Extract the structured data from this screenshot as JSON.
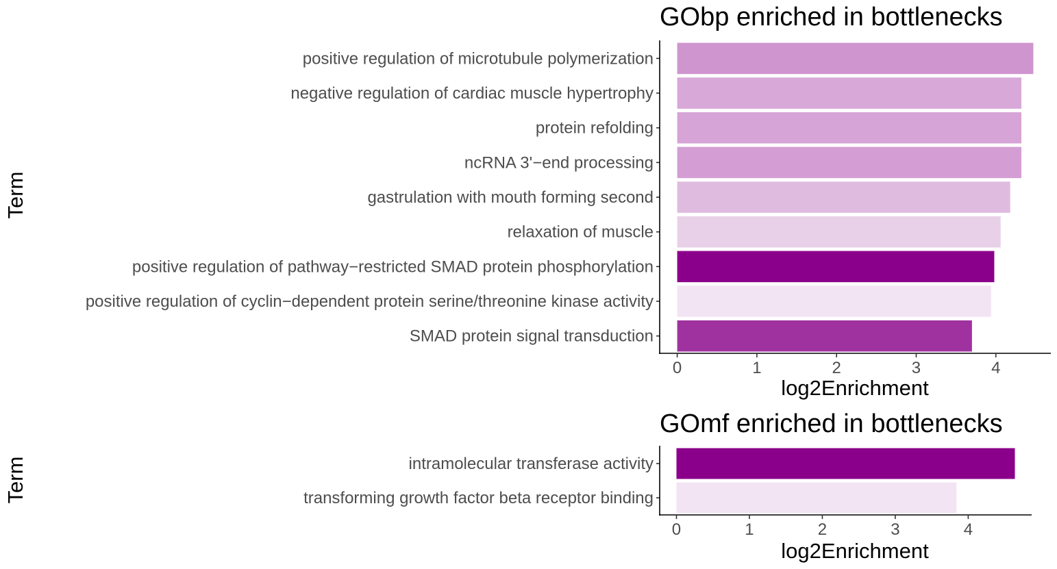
{
  "chart_data": [
    {
      "type": "bar",
      "orientation": "horizontal",
      "title": "GObp enriched in bottlenecks",
      "xlabel": "log2Enrichment",
      "ylabel": "Term",
      "xlim": [
        -0.22,
        4.69
      ],
      "xticks": [
        0,
        1,
        2,
        3,
        4
      ],
      "grid": false,
      "legend": "none",
      "categories": [
        "positive regulation of microtubule polymerization",
        "negative regulation of cardiac muscle hypertrophy",
        "protein refolding",
        "ncRNA 3'−end processing",
        "gastrulation with mouth forming second",
        "relaxation of muscle",
        "positive regulation of pathway−restricted SMAD protein phosphorylation",
        "positive regulation of cyclin−dependent protein serine/threonine kinase activity",
        "SMAD protein signal transduction"
      ],
      "values": [
        4.47,
        4.32,
        4.32,
        4.32,
        4.18,
        4.06,
        3.98,
        3.94,
        3.7
      ],
      "colors": [
        "#cf95cf",
        "#d8a8d8",
        "#d6a4d6",
        "#d49ed4",
        "#dfbcdf",
        "#e8d1e8",
        "#8b008b",
        "#f3e4f3",
        "#a032a0"
      ]
    },
    {
      "type": "bar",
      "orientation": "horizontal",
      "title": "GOmf enriched in bottlenecks",
      "xlabel": "log2Enrichment",
      "ylabel": "Term",
      "xlim": [
        -0.23,
        4.87
      ],
      "xticks": [
        0,
        1,
        2,
        3,
        4
      ],
      "grid": false,
      "legend": "none",
      "categories": [
        "intramolecular transferase activity",
        "transforming growth factor beta receptor binding"
      ],
      "values": [
        4.64,
        3.84
      ],
      "colors": [
        "#8b008b",
        "#f3e4f3"
      ]
    }
  ]
}
